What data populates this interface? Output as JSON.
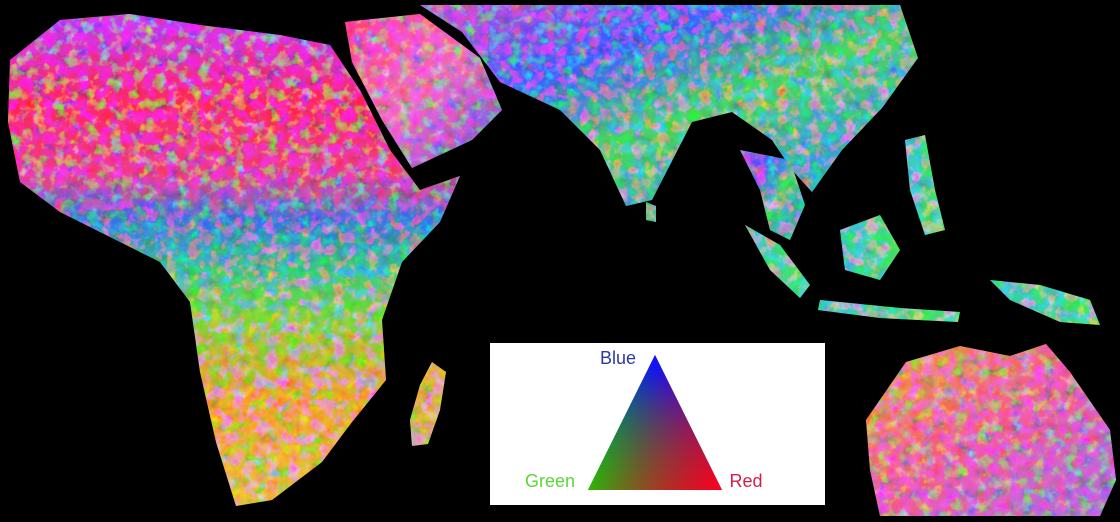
{
  "legend": {
    "top": "Blue",
    "left": "Green",
    "right": "Red"
  }
}
